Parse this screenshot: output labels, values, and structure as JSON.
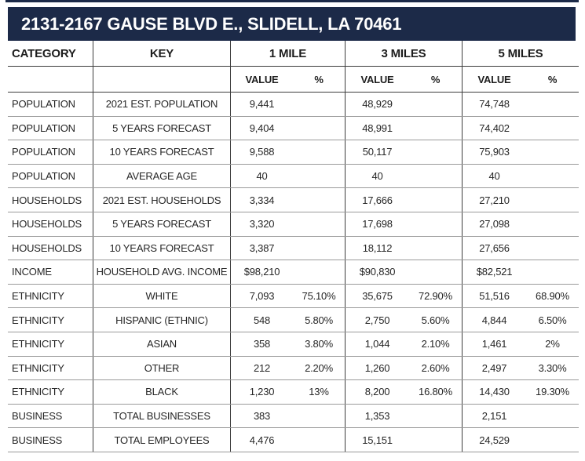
{
  "title": "2131-2167 GAUSE BLVD E., SLIDELL, LA 70461",
  "colors": {
    "banner_navy": "#1c2a48",
    "grid_line_dark": "#3c3c3c",
    "grid_line_gray": "#9a9a9a",
    "text": "#262626"
  },
  "table": {
    "headers": {
      "category": "CATEGORY",
      "key": "KEY",
      "radius_1": "1 MILE",
      "radius_3": "3 MILES",
      "radius_5": "5 MILES",
      "value_label": "VALUE",
      "pct_label": "%"
    },
    "rows": [
      {
        "category": "POPULATION",
        "key": "2021 EST. POPULATION",
        "cells": [
          "9,441",
          "",
          "48,929",
          "",
          "74,748",
          ""
        ]
      },
      {
        "category": "POPULATION",
        "key": "5 YEARS FORECAST",
        "cells": [
          "9,404",
          "",
          "48,991",
          "",
          "74,402",
          ""
        ]
      },
      {
        "category": "POPULATION",
        "key": "10 YEARS FORECAST",
        "cells": [
          "9,588",
          "",
          "50,117",
          "",
          "75,903",
          ""
        ]
      },
      {
        "category": "POPULATION",
        "key": "AVERAGE AGE",
        "cells": [
          "40",
          "",
          "40",
          "",
          "40",
          ""
        ]
      },
      {
        "category": "HOUSEHOLDS",
        "key": "2021 EST. HOUSEHOLDS",
        "cells": [
          "3,334",
          "",
          "17,666",
          "",
          "27,210",
          ""
        ]
      },
      {
        "category": "HOUSEHOLDS",
        "key": "5 YEARS FORECAST",
        "cells": [
          "3,320",
          "",
          "17,698",
          "",
          "27,098",
          ""
        ]
      },
      {
        "category": "HOUSEHOLDS",
        "key": "10 YEARS FORECAST",
        "cells": [
          "3,387",
          "",
          "18,112",
          "",
          "27,656",
          ""
        ]
      },
      {
        "category": "INCOME",
        "key": "HOUSEHOLD AVG. INCOME",
        "cells": [
          "$98,210",
          "",
          "$90,830",
          "",
          "$82,521",
          ""
        ]
      },
      {
        "category": "ETHNICITY",
        "key": "WHITE",
        "cells": [
          "7,093",
          "75.10%",
          "35,675",
          "72.90%",
          "51,516",
          "68.90%"
        ]
      },
      {
        "category": "ETHNICITY",
        "key": "HISPANIC (ETHNIC)",
        "cells": [
          "548",
          "5.80%",
          "2,750",
          "5.60%",
          "4,844",
          "6.50%"
        ]
      },
      {
        "category": "ETHNICITY",
        "key": "ASIAN",
        "cells": [
          "358",
          "3.80%",
          "1,044",
          "2.10%",
          "1,461",
          "2%"
        ]
      },
      {
        "category": "ETHNICITY",
        "key": "OTHER",
        "cells": [
          "212",
          "2.20%",
          "1,260",
          "2.60%",
          "2,497",
          "3.30%"
        ]
      },
      {
        "category": "ETHNICITY",
        "key": "BLACK",
        "cells": [
          "1,230",
          "13%",
          "8,200",
          "16.80%",
          "14,430",
          "19.30%"
        ]
      },
      {
        "category": "BUSINESS",
        "key": "TOTAL BUSINESSES",
        "cells": [
          "383",
          "",
          "1,353",
          "",
          "2,151",
          ""
        ]
      },
      {
        "category": "BUSINESS",
        "key": "TOTAL EMPLOYEES",
        "cells": [
          "4,476",
          "",
          "15,151",
          "",
          "24,529",
          ""
        ]
      }
    ]
  }
}
